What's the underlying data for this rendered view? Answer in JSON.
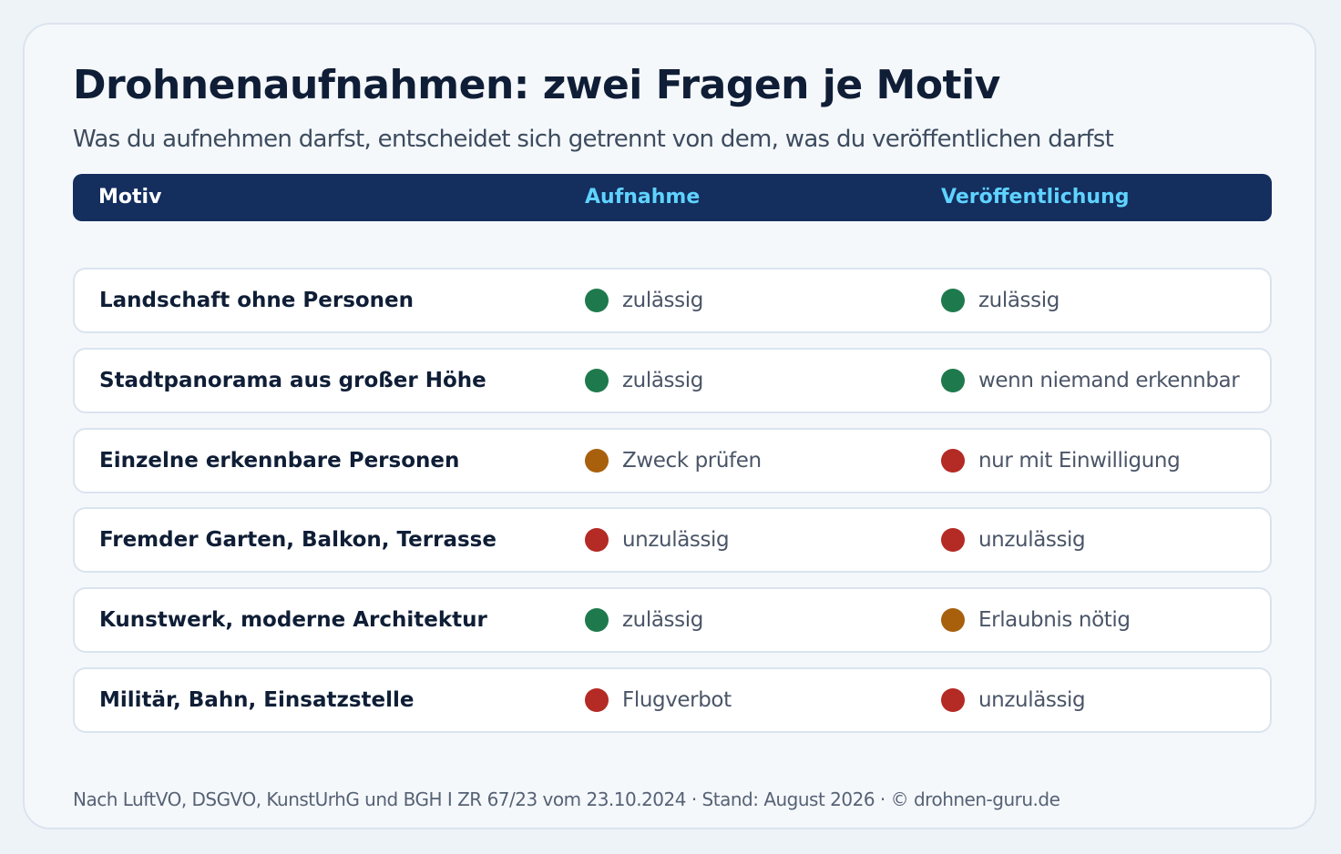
{
  "header": {
    "title": "Drohnenaufnahmen: zwei Fragen je Motiv",
    "subtitle": "Was du aufnehmen darfst, entscheidet sich getrennt von dem, was du veröffentlichen darfst"
  },
  "table": {
    "columns": [
      "Motiv",
      "Aufnahme",
      "Veröffentlichung"
    ],
    "rows": [
      {
        "motiv": "Landschaft ohne Personen",
        "aufnahme": {
          "status": "green",
          "text": "zulässig"
        },
        "veroeffentlichung": {
          "status": "green",
          "text": "zulässig"
        }
      },
      {
        "motiv": "Stadtpanorama aus großer Höhe",
        "aufnahme": {
          "status": "green",
          "text": "zulässig"
        },
        "veroeffentlichung": {
          "status": "green",
          "text": "wenn niemand erkennbar"
        }
      },
      {
        "motiv": "Einzelne erkennbare Personen",
        "aufnahme": {
          "status": "orange",
          "text": "Zweck prüfen"
        },
        "veroeffentlichung": {
          "status": "red",
          "text": "nur mit Einwilligung"
        }
      },
      {
        "motiv": "Fremder Garten, Balkon, Terrasse",
        "aufnahme": {
          "status": "red",
          "text": "unzulässig"
        },
        "veroeffentlichung": {
          "status": "red",
          "text": "unzulässig"
        }
      },
      {
        "motiv": "Kunstwerk, moderne Architektur",
        "aufnahme": {
          "status": "green",
          "text": "zulässig"
        },
        "veroeffentlichung": {
          "status": "orange",
          "text": "Erlaubnis nötig"
        }
      },
      {
        "motiv": "Militär, Bahn, Einsatzstelle",
        "aufnahme": {
          "status": "red",
          "text": "Flugverbot"
        },
        "veroeffentlichung": {
          "status": "red",
          "text": "unzulässig"
        }
      }
    ]
  },
  "colors": {
    "green": "#1e7a4c",
    "orange": "#a8600c",
    "red": "#b42a24",
    "header_bg": "#142e5e",
    "header_accent": "#5fd3ff"
  },
  "footer": {
    "text": "Nach LuftVO, DSGVO, KunstUrhG und BGH I ZR 67/23 vom 23.10.2024 · Stand: August 2026 · © drohnen-guru.de"
  }
}
